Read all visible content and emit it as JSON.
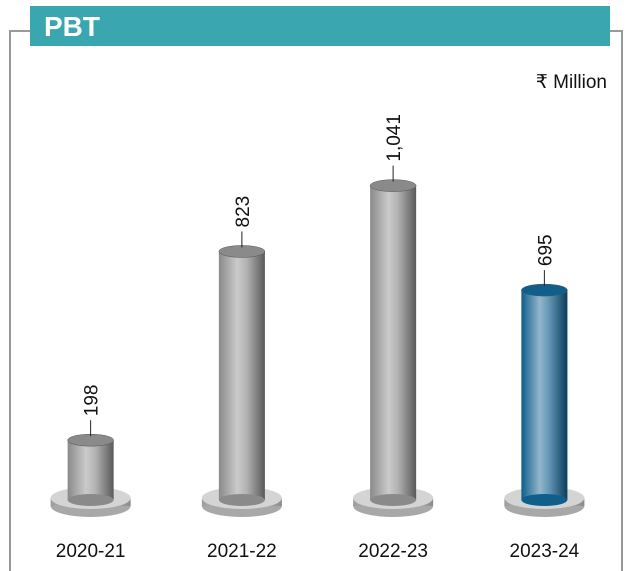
{
  "chart_data": {
    "type": "bar",
    "title": "PBT",
    "unit": "₹ Million",
    "categories": [
      "2020-21",
      "2021-22",
      "2022-23",
      "2023-24"
    ],
    "values": [
      198,
      823,
      1041,
      695
    ],
    "value_labels": [
      "198",
      "823",
      "1,041",
      "695"
    ],
    "colors": [
      "#8a8a8a",
      "#8a8a8a",
      "#8a8a8a",
      "#0f5e8c"
    ]
  }
}
